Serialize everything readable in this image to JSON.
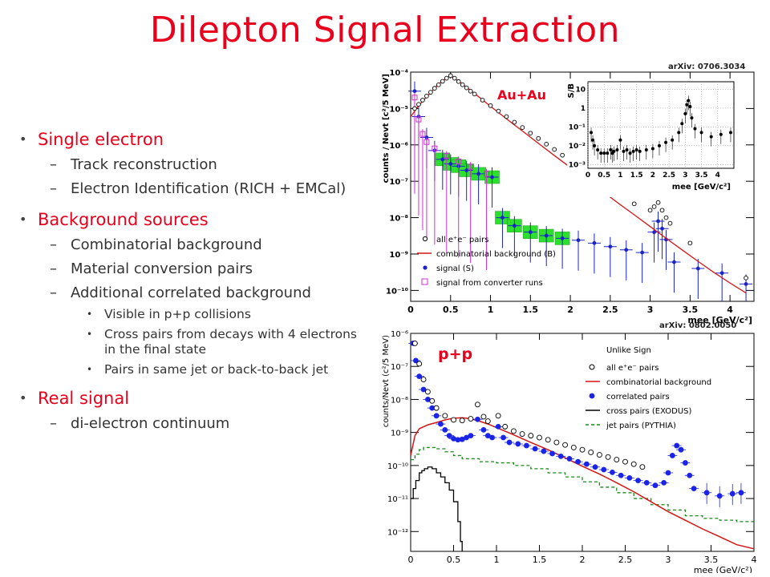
{
  "slide": {
    "title": "Dilepton Signal Extraction",
    "bullets": [
      {
        "text": "Single electron",
        "sub": [
          {
            "text": "Track reconstruction"
          },
          {
            "text": "Electron Identification (RICH + EMCal)"
          }
        ]
      },
      {
        "text": "Background sources",
        "sub": [
          {
            "text": "Combinatorial background"
          },
          {
            "text": "Material conversion pairs"
          },
          {
            "text": "Additional correlated background",
            "sub": [
              "Visible in p+p collisions",
              "Cross pairs from decays with 4 electrons in the final state",
              "Pairs in same jet or back-to-back jet"
            ]
          }
        ]
      },
      {
        "text": "Real signal",
        "sub": [
          {
            "text": "di-electron continuum"
          }
        ]
      }
    ],
    "dash": "–"
  },
  "chart_data": [
    {
      "type": "scatter",
      "ref": "arXiv: 0706.3034",
      "label": "Au+Au",
      "ylabel": "counts / Nevt [c²/5 MeV]",
      "xlabel": "mee [GeV/c²]",
      "xlim": [
        0,
        4.3
      ],
      "ylim_log10": [
        -10.3,
        -4
      ],
      "log_y": true,
      "xticks": [
        "0",
        "0.5",
        "1",
        "1.5",
        "2",
        "2.5",
        "3",
        "3.5",
        "4"
      ],
      "yticks": [
        "10⁻¹⁰",
        "10⁻⁹",
        "10⁻⁸",
        "10⁻⁷",
        "10⁻⁶",
        "10⁻⁵",
        "10⁻⁴"
      ],
      "legend": [
        "all e⁺e⁻ pairs",
        "combinatorial background (B)",
        "signal (S)",
        "signal from converter runs"
      ],
      "legend_position": "bottom-left",
      "series": [
        {
          "name": "all e⁺e⁻ pairs",
          "color": "#000000",
          "x": [
            0.05,
            0.1,
            0.15,
            0.2,
            0.25,
            0.3,
            0.35,
            0.4,
            0.45,
            0.5,
            0.55,
            0.6,
            0.65,
            0.7,
            0.75,
            0.8,
            0.9,
            1.0,
            1.1,
            1.2,
            1.3,
            1.4,
            1.5,
            1.6,
            1.7,
            1.8,
            1.9,
            2.0,
            2.2,
            2.4,
            2.6,
            2.8,
            3.0,
            3.05,
            3.1,
            3.15,
            3.2,
            3.25,
            3.5,
            4.2
          ],
          "y": [
            1e-05,
            1.3e-05,
            1.7e-05,
            2.2e-05,
            2.8e-05,
            3.6e-05,
            4.5e-05,
            5.6e-05,
            6.8e-05,
            8e-05,
            6.8e-05,
            5.5e-05,
            4.5e-05,
            3.7e-05,
            3e-05,
            2.5e-05,
            1.7e-05,
            1.2e-05,
            8.5e-06,
            6e-06,
            4.2e-06,
            3e-06,
            2.1e-06,
            1.5e-06,
            1.05e-06,
            7.5e-07,
            5.2e-07,
            3.7e-07,
            1.9e-07,
            9.5e-08,
            4.8e-08,
            2.4e-08,
            1.6e-08,
            2e-08,
            2.6e-08,
            1.6e-08,
            1e-08,
            7e-09,
            2e-09,
            2.2e-10
          ]
        },
        {
          "name": "combinatorial background (B)",
          "color": "#d41515",
          "x": [
            0.0,
            0.1,
            0.2,
            0.3,
            0.4,
            0.5,
            0.6,
            0.8,
            1.0,
            1.2,
            1.4,
            1.6,
            1.8,
            2.0,
            2.2,
            2.4,
            2.6,
            2.8,
            3.0,
            3.2,
            3.4,
            3.6,
            3.8,
            4.0,
            4.2
          ],
          "y": [
            6e-06,
            1.2e-05,
            2.1e-05,
            3.6e-05,
            5.8e-05,
            8e-05,
            5.6e-05,
            2.6e-05,
            1.15e-05,
            5.2e-06,
            2.4e-06,
            1.1e-06,
            5.1e-07,
            2.4e-07,
            1.1e-07,
            5.3e-08,
            2.5e-08,
            1.2e-08,
            5.7e-09,
            2.7e-09,
            1.3e-09,
            6.3e-10,
            3.1e-10,
            1.6e-10,
            8.5e-11
          ]
        },
        {
          "name": "signal (S)",
          "color": "#1a24c8",
          "x": [
            0.05,
            0.1,
            0.2,
            0.3,
            0.4,
            0.5,
            0.6,
            0.7,
            0.85,
            1.02,
            1.15,
            1.3,
            1.5,
            1.7,
            1.9,
            2.1,
            2.3,
            2.5,
            2.7,
            2.9,
            3.05,
            3.1,
            3.15,
            3.2,
            3.3,
            3.6,
            3.9,
            4.2
          ],
          "y": [
            3e-05,
            6e-06,
            1.6e-06,
            7e-07,
            4e-07,
            3e-07,
            2.6e-07,
            2e-07,
            1.6e-07,
            1.3e-07,
            1e-08,
            6e-09,
            4e-09,
            3.2e-09,
            2.7e-09,
            2.4e-09,
            2e-09,
            1.6e-09,
            1.3e-09,
            1.1e-09,
            4e-09,
            8e-09,
            5e-09,
            2.5e-09,
            6e-10,
            4e-10,
            3e-10,
            1.5e-10
          ]
        },
        {
          "name": "signal from converter runs",
          "color": "#d030d0",
          "x": [
            0.05,
            0.1,
            0.15,
            0.2,
            0.3,
            0.45,
            0.6,
            0.75,
            0.95
          ],
          "y": [
            2e-05,
            5e-06,
            2e-06,
            1.2e-06,
            8e-07,
            5e-07,
            3.5e-07,
            2.5e-07,
            1.6e-07
          ]
        }
      ],
      "inset": {
        "ylabel": "S/B",
        "xlabel": "mee [GeV/c²]",
        "xticks": [
          "0",
          "0.5",
          "1",
          "1.5",
          "2",
          "2.5",
          "3",
          "3.5",
          "4"
        ],
        "yticks": [
          "10⁻³",
          "10⁻²",
          "10⁻¹",
          "1",
          "10"
        ],
        "xlim": [
          0,
          4.5
        ],
        "ylim_log10": [
          -3.2,
          1.4
        ],
        "x": [
          0.1,
          0.15,
          0.2,
          0.3,
          0.4,
          0.5,
          0.6,
          0.7,
          0.75,
          0.8,
          0.9,
          1.0,
          1.1,
          1.2,
          1.3,
          1.4,
          1.5,
          1.6,
          1.8,
          2.0,
          2.2,
          2.4,
          2.6,
          2.8,
          2.9,
          3.0,
          3.05,
          3.1,
          3.15,
          3.2,
          3.3,
          3.5,
          3.8,
          4.1,
          4.4
        ],
        "y": [
          0.05,
          0.02,
          0.01,
          0.006,
          0.004,
          0.004,
          0.004,
          0.006,
          0.004,
          0.005,
          0.006,
          0.02,
          0.005,
          0.006,
          0.004,
          0.005,
          0.006,
          0.005,
          0.006,
          0.007,
          0.01,
          0.015,
          0.02,
          0.05,
          0.15,
          0.5,
          1.5,
          2.5,
          1.2,
          0.3,
          0.08,
          0.05,
          0.03,
          0.04,
          0.05
        ]
      }
    },
    {
      "type": "line",
      "ref": "arXiv: 0802.0050",
      "label": "p+p",
      "ylabel": "counts/Nevt (c²/5 MeV)",
      "xlabel": "mee (GeV/c²)",
      "xlim": [
        0,
        4
      ],
      "ylim_log10": [
        -12.6,
        -6
      ],
      "log_y": true,
      "xticks": [
        "0",
        "0.5",
        "1",
        "1.5",
        "2",
        "2.5",
        "3",
        "3.5",
        "4"
      ],
      "yticks": [
        "10⁻¹²",
        "10⁻¹¹",
        "10⁻¹⁰",
        "10⁻⁹",
        "10⁻⁸",
        "10⁻⁷",
        "10⁻⁶"
      ],
      "legend_title": "Unlike Sign",
      "legend": [
        "all e⁺e⁻ pairs",
        "combinatorial background",
        "correlated pairs",
        "cross pairs (EXODUS)",
        "jet pairs (PYTHIA)"
      ],
      "legend_position": "top-right",
      "series": [
        {
          "name": "all e⁺e⁻ pairs",
          "color": "#000000",
          "x": [
            0.05,
            0.1,
            0.15,
            0.2,
            0.25,
            0.3,
            0.4,
            0.5,
            0.6,
            0.7,
            0.78,
            0.85,
            0.9,
            1.02,
            1.1,
            1.2,
            1.3,
            1.4,
            1.5,
            1.6,
            1.7,
            1.8,
            1.9,
            2.0,
            2.1,
            2.2,
            2.3,
            2.4,
            2.5,
            2.6,
            2.7
          ],
          "y": [
            5e-07,
            1.2e-07,
            4e-08,
            1.7e-08,
            9e-09,
            5.5e-09,
            3.2e-09,
            2.4e-09,
            2.3e-09,
            2.6e-09,
            7e-09,
            3e-09,
            2.2e-09,
            3.2e-09,
            1.5e-09,
            1.1e-09,
            9e-10,
            8e-10,
            7e-10,
            6e-10,
            5e-10,
            4.2e-10,
            3.5e-10,
            3e-10,
            2.5e-10,
            2.1e-10,
            1.8e-10,
            1.5e-10,
            1.3e-10,
            1.1e-10,
            9e-11
          ]
        },
        {
          "name": "combinatorial background",
          "color": "#d41515",
          "x": [
            0.0,
            0.05,
            0.1,
            0.2,
            0.3,
            0.4,
            0.5,
            0.6,
            0.7,
            0.8,
            0.9,
            1.0,
            1.2,
            1.4,
            1.6,
            1.8,
            2.0,
            2.2,
            2.4,
            2.6,
            2.8,
            3.0,
            3.2,
            3.4,
            3.6,
            3.8,
            4.0
          ],
          "y": [
            2e-10,
            8e-10,
            1.3e-09,
            1.7e-09,
            2e-09,
            2.4e-09,
            2.7e-09,
            2.8e-09,
            2.6e-09,
            2.2e-09,
            1.8e-09,
            1.4e-09,
            8.5e-10,
            5e-10,
            3e-10,
            1.7e-10,
            9.5e-11,
            5.5e-11,
            3e-11,
            1.6e-11,
            8e-12,
            4e-12,
            2.2e-12,
            1.2e-12,
            7e-13,
            4e-13,
            3e-13
          ]
        },
        {
          "name": "correlated pairs",
          "color": "#1a24e6",
          "x": [
            0.03,
            0.06,
            0.1,
            0.15,
            0.2,
            0.25,
            0.3,
            0.35,
            0.4,
            0.45,
            0.5,
            0.55,
            0.6,
            0.65,
            0.7,
            0.78,
            0.85,
            0.9,
            0.95,
            1.02,
            1.08,
            1.15,
            1.25,
            1.35,
            1.45,
            1.55,
            1.65,
            1.75,
            1.85,
            1.95,
            2.05,
            2.15,
            2.25,
            2.35,
            2.45,
            2.55,
            2.65,
            2.75,
            2.85,
            2.95,
            3.0,
            3.05,
            3.1,
            3.15,
            3.2,
            3.25,
            3.3,
            3.45,
            3.6,
            3.75,
            3.85
          ],
          "y": [
            5e-07,
            1.5e-07,
            5e-08,
            2e-08,
            1e-08,
            5.5e-09,
            3.2e-09,
            1.8e-09,
            1.2e-09,
            8e-10,
            6.5e-10,
            6e-10,
            6.2e-10,
            7e-10,
            8e-10,
            2.5e-09,
            1.2e-09,
            8e-10,
            7e-10,
            1.5e-09,
            7e-10,
            5e-10,
            4.5e-10,
            4e-10,
            3.2e-10,
            2.7e-10,
            2.3e-10,
            1.9e-10,
            1.6e-10,
            1.3e-10,
            1.1e-10,
            9e-11,
            7.5e-11,
            6.2e-11,
            5e-11,
            4.2e-11,
            3.5e-11,
            3e-11,
            2.5e-11,
            3e-11,
            6e-11,
            2e-10,
            4e-10,
            3e-10,
            1.2e-10,
            5e-11,
            2e-11,
            1.5e-11,
            1.2e-11,
            1.4e-11,
            1.5e-11
          ]
        },
        {
          "name": "cross pairs (EXODUS)",
          "color": "#000000",
          "x": [
            0.0,
            0.03,
            0.06,
            0.1,
            0.13,
            0.16,
            0.2,
            0.25,
            0.3,
            0.35,
            0.4,
            0.45,
            0.5,
            0.55,
            0.58,
            0.6
          ],
          "y": [
            1e-11,
            2e-11,
            3.5e-11,
            6e-11,
            7e-11,
            8e-11,
            9e-11,
            8e-11,
            6e-11,
            4.5e-11,
            3e-11,
            1.8e-11,
            8e-12,
            2e-12,
            5e-13,
            2e-13
          ]
        },
        {
          "name": "jet pairs (PYTHIA)",
          "color": "#1a8a1a",
          "x": [
            0.0,
            0.05,
            0.1,
            0.15,
            0.2,
            0.3,
            0.4,
            0.5,
            0.6,
            0.8,
            1.0,
            1.2,
            1.4,
            1.6,
            1.8,
            2.0,
            2.2,
            2.4,
            2.6,
            2.8,
            3.0,
            3.2,
            3.4,
            3.6,
            3.8,
            4.0
          ],
          "y": [
            1.5e-10,
            2.2e-10,
            3e-10,
            3.5e-10,
            3.5e-10,
            3.2e-10,
            2.6e-10,
            2e-10,
            1.6e-10,
            1.3e-10,
            1.2e-10,
            1e-10,
            8e-11,
            6e-11,
            4.5e-11,
            3.2e-11,
            2.2e-11,
            1.5e-11,
            1e-11,
            6.5e-12,
            4.5e-12,
            3e-12,
            2.5e-12,
            2.2e-12,
            2e-12,
            2e-12
          ]
        }
      ]
    }
  ]
}
